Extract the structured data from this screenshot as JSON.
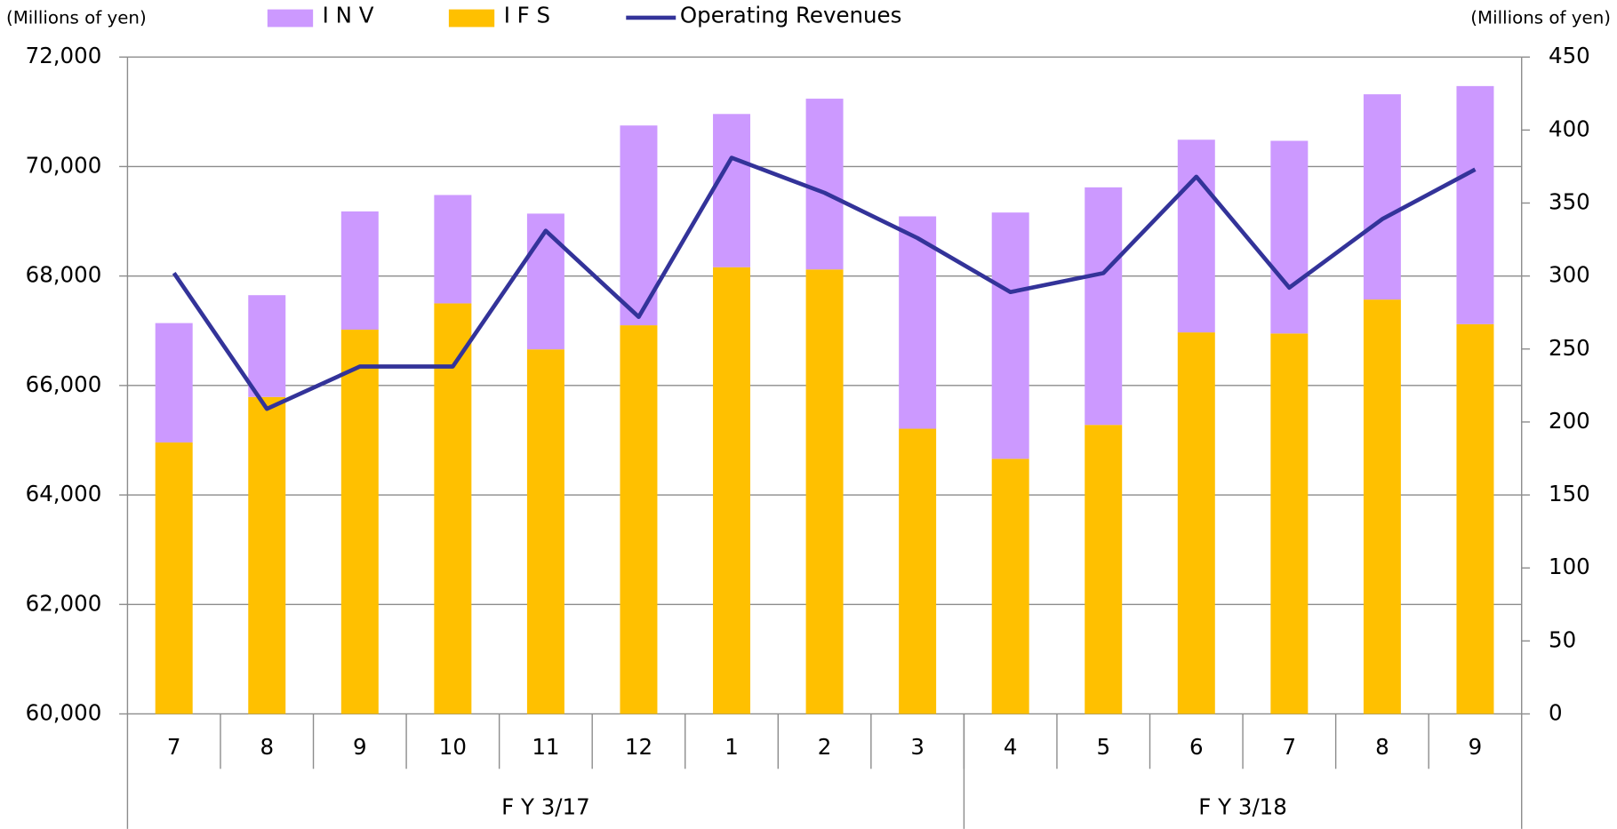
{
  "chart_data": {
    "type": "bar-line",
    "y_label": "(Millions of yen)",
    "y2_label": "(Millions of yen)",
    "categories": [
      "7",
      "8",
      "9",
      "10",
      "11",
      "12",
      "1",
      "2",
      "3",
      "4",
      "5",
      "6",
      "7",
      "8",
      "9"
    ],
    "groups": [
      {
        "label": "F Y 3/17",
        "count": 9
      },
      {
        "label": "F Y 3/18",
        "count": 6
      }
    ],
    "series": [
      {
        "name": "I F S",
        "type": "bar",
        "color": "#ffc000",
        "values": [
          64960,
          65790,
          67020,
          67500,
          66660,
          67100,
          68160,
          68120,
          65210,
          64660,
          65280,
          66970,
          66950,
          67570,
          67120
        ]
      },
      {
        "name": "I N V",
        "type": "bar",
        "color": "#cc99ff",
        "values": [
          2180,
          1860,
          2160,
          1980,
          2480,
          3650,
          2800,
          3120,
          3880,
          4500,
          4340,
          3520,
          3520,
          3750,
          4350
        ]
      },
      {
        "name": "Operating Revenues",
        "type": "line",
        "axis": "y2",
        "color": "#333399",
        "values": [
          302,
          209,
          238,
          238,
          331,
          272,
          381,
          357,
          326,
          289,
          302,
          368,
          292,
          339,
          373
        ]
      }
    ],
    "legend_order": [
      "I N V",
      "I F S",
      "Operating Revenues"
    ],
    "ylim": [
      60000,
      72000
    ],
    "yticks": [
      {
        "value": 60000,
        "label": "60,000"
      },
      {
        "value": 62000,
        "label": "62,000"
      },
      {
        "value": 64000,
        "label": "64,000"
      },
      {
        "value": 66000,
        "label": "66,000"
      },
      {
        "value": 68000,
        "label": "68,000"
      },
      {
        "value": 70000,
        "label": "70,000"
      },
      {
        "value": 72000,
        "label": "72,000"
      }
    ],
    "y2lim": [
      0,
      450
    ],
    "y2ticks": [
      0,
      50,
      100,
      150,
      200,
      250,
      300,
      350,
      400,
      450
    ],
    "grid": true,
    "legend": "top"
  }
}
